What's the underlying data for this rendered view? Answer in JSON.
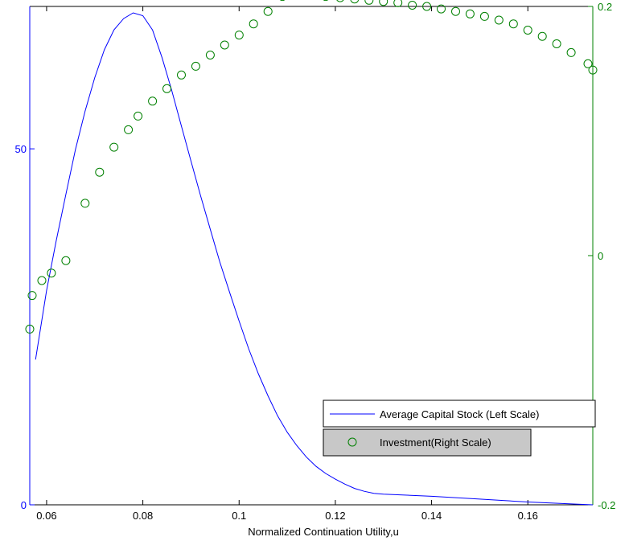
{
  "chart_data": {
    "type": "line+scatter",
    "xlabel": "Normalized Continuation Utility,u",
    "xlim": [
      0.0565,
      0.1735
    ],
    "x_ticks": [
      "0.06",
      "0.08",
      "0.1",
      "0.12",
      "0.14",
      "0.16"
    ],
    "x_tick_values": [
      0.06,
      0.08,
      0.1,
      0.12,
      0.14,
      0.16
    ],
    "ylim_left": [
      0,
      70
    ],
    "y_left_ticks": [
      "0",
      "50"
    ],
    "y_left_tick_values": [
      0,
      50
    ],
    "ylim_right": [
      -0.2,
      0.2
    ],
    "y_right_ticks": [
      "-0.2",
      "0",
      "0.2"
    ],
    "y_right_tick_values": [
      -0.2,
      0,
      0.2
    ],
    "grid": false,
    "legend_position": "lower-right",
    "colors": {
      "left_axis": "#0000ff",
      "right_axis": "#008000",
      "line": "#0000ff",
      "markers": "#008000",
      "legend_highlight": "#c8c8c8"
    },
    "series": [
      {
        "name": "Average Capital Stock (Left Scale)",
        "axis": "left",
        "style": "line",
        "x": [
          0.0577,
          0.06,
          0.062,
          0.064,
          0.066,
          0.068,
          0.07,
          0.072,
          0.074,
          0.076,
          0.078,
          0.08,
          0.082,
          0.084,
          0.086,
          0.088,
          0.09,
          0.092,
          0.094,
          0.096,
          0.098,
          0.1,
          0.102,
          0.104,
          0.106,
          0.108,
          0.11,
          0.112,
          0.114,
          0.116,
          0.118,
          0.12,
          0.122,
          0.124,
          0.126,
          0.128,
          0.13,
          0.14,
          0.15,
          0.16,
          0.17,
          0.1735
        ],
        "y": [
          20.4,
          30.1,
          37.1,
          43.6,
          49.9,
          55.3,
          60.0,
          63.9,
          66.7,
          68.3,
          69.1,
          68.7,
          66.7,
          62.8,
          58.2,
          53.2,
          48.3,
          43.4,
          38.7,
          34.1,
          29.9,
          25.8,
          21.9,
          18.4,
          15.3,
          12.5,
          10.2,
          8.3,
          6.7,
          5.4,
          4.4,
          3.6,
          2.9,
          2.3,
          1.9,
          1.6,
          1.5,
          1.2,
          0.8,
          0.4,
          0.1,
          0.0
        ]
      },
      {
        "name": "Investment(Right Scale)",
        "axis": "right",
        "style": "markers",
        "x": [
          0.0565,
          0.057,
          0.059,
          0.061,
          0.064,
          0.068,
          0.071,
          0.074,
          0.077,
          0.079,
          0.082,
          0.085,
          0.088,
          0.091,
          0.094,
          0.097,
          0.1,
          0.103,
          0.106,
          0.109,
          0.112,
          0.115,
          0.118,
          0.121,
          0.124,
          0.127,
          0.13,
          0.133,
          0.136,
          0.139,
          0.142,
          0.145,
          0.148,
          0.151,
          0.154,
          0.157,
          0.16,
          0.163,
          0.166,
          0.169,
          0.1725,
          0.1735
        ],
        "y": [
          -0.059,
          -0.032,
          -0.02,
          -0.014,
          -0.004,
          0.042,
          0.067,
          0.087,
          0.101,
          0.112,
          0.124,
          0.134,
          0.145,
          0.152,
          0.161,
          0.169,
          0.177,
          0.186,
          0.196,
          0.208,
          0.209,
          0.209,
          0.208,
          0.207,
          0.206,
          0.205,
          0.204,
          0.203,
          0.201,
          0.2,
          0.198,
          0.196,
          0.194,
          0.192,
          0.189,
          0.186,
          0.181,
          0.176,
          0.17,
          0.163,
          0.154,
          0.149
        ]
      }
    ]
  }
}
